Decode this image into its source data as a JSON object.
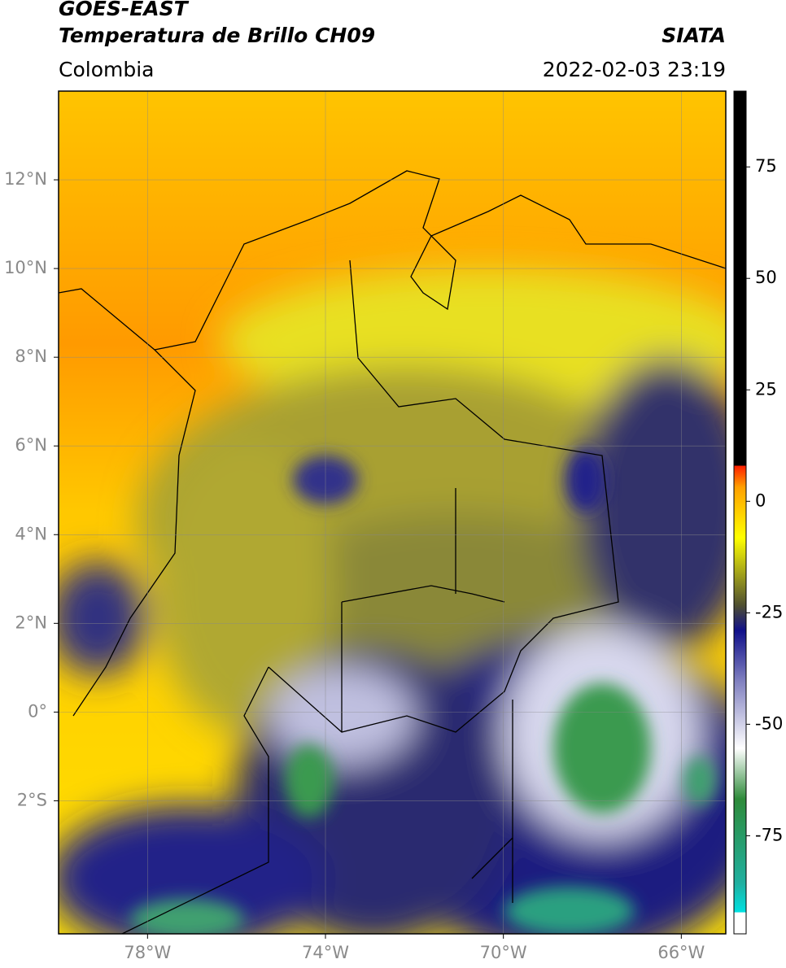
{
  "header": {
    "title": "GOES-EAST",
    "subtitle": "Temperatura de Brillo CH09",
    "source": "SIATA",
    "region": "Colombia",
    "datetime": "2022-02-03 23:19"
  },
  "map": {
    "type": "map",
    "xlim": [
      -80,
      -65
    ],
    "ylim": [
      -5,
      14
    ],
    "xticks": [
      {
        "value": -78,
        "label": "78°W"
      },
      {
        "value": -74,
        "label": "74°W"
      },
      {
        "value": -70,
        "label": "70°W"
      },
      {
        "value": -66,
        "label": "66°W"
      }
    ],
    "yticks": [
      {
        "value": 12,
        "label": "12°N"
      },
      {
        "value": 10,
        "label": "10°N"
      },
      {
        "value": 8,
        "label": "8°N"
      },
      {
        "value": 6,
        "label": "6°N"
      },
      {
        "value": 4,
        "label": "4°N"
      },
      {
        "value": 2,
        "label": "2°N"
      },
      {
        "value": 0,
        "label": "0°"
      },
      {
        "value": -2,
        "label": "2°S"
      }
    ],
    "grid": true
  },
  "colorbar": {
    "clim": [
      -97,
      92
    ],
    "ticks": [
      75,
      50,
      25,
      0,
      -25,
      -50,
      -75
    ]
  }
}
